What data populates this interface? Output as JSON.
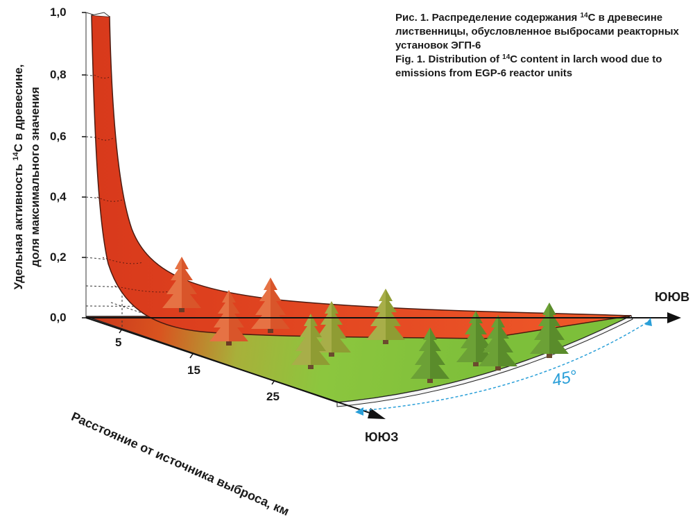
{
  "caption": {
    "ru_line1_pre": "Рис. 1. Распределение содержания ",
    "ru_line1_sup": "14",
    "ru_line1_post": "С в древесине",
    "ru_line2": "лиственницы, обусловленное выбросами реакторных",
    "ru_line3": "установок ЭГП-6",
    "en_line1_pre": "Fig. 1. Distribution of ",
    "en_line1_sup": "14",
    "en_line1_post": "C content in larch wood due to",
    "en_line2": "emissions from EGP-6 reactor units"
  },
  "y_axis": {
    "label_pre": "Удельная активность ",
    "label_sup": "14",
    "label_post": "С в древесине,",
    "label_line2": "доля максимального значения",
    "ticks": [
      "1,0",
      "0,8",
      "0,6",
      "0,4",
      "0,2",
      "0,0"
    ]
  },
  "x_axis": {
    "label": "Расстояние от источника выброса, км",
    "ticks": [
      "5",
      "15",
      "25"
    ]
  },
  "directions": {
    "east": "ЮЮВ",
    "south": "ЮЮЗ"
  },
  "angle_label": "45°",
  "colors": {
    "curve": "#e8461f",
    "curve_dark": "#c2331a",
    "ground": "#8cc63e",
    "tree_green": "#5a8c2b",
    "tree_orange": "#e0642c",
    "arc_blue": "#2a9fd8",
    "text": "#1a1a1a"
  },
  "icons": [
    "larch-tree-icon",
    "arrow-icon"
  ]
}
